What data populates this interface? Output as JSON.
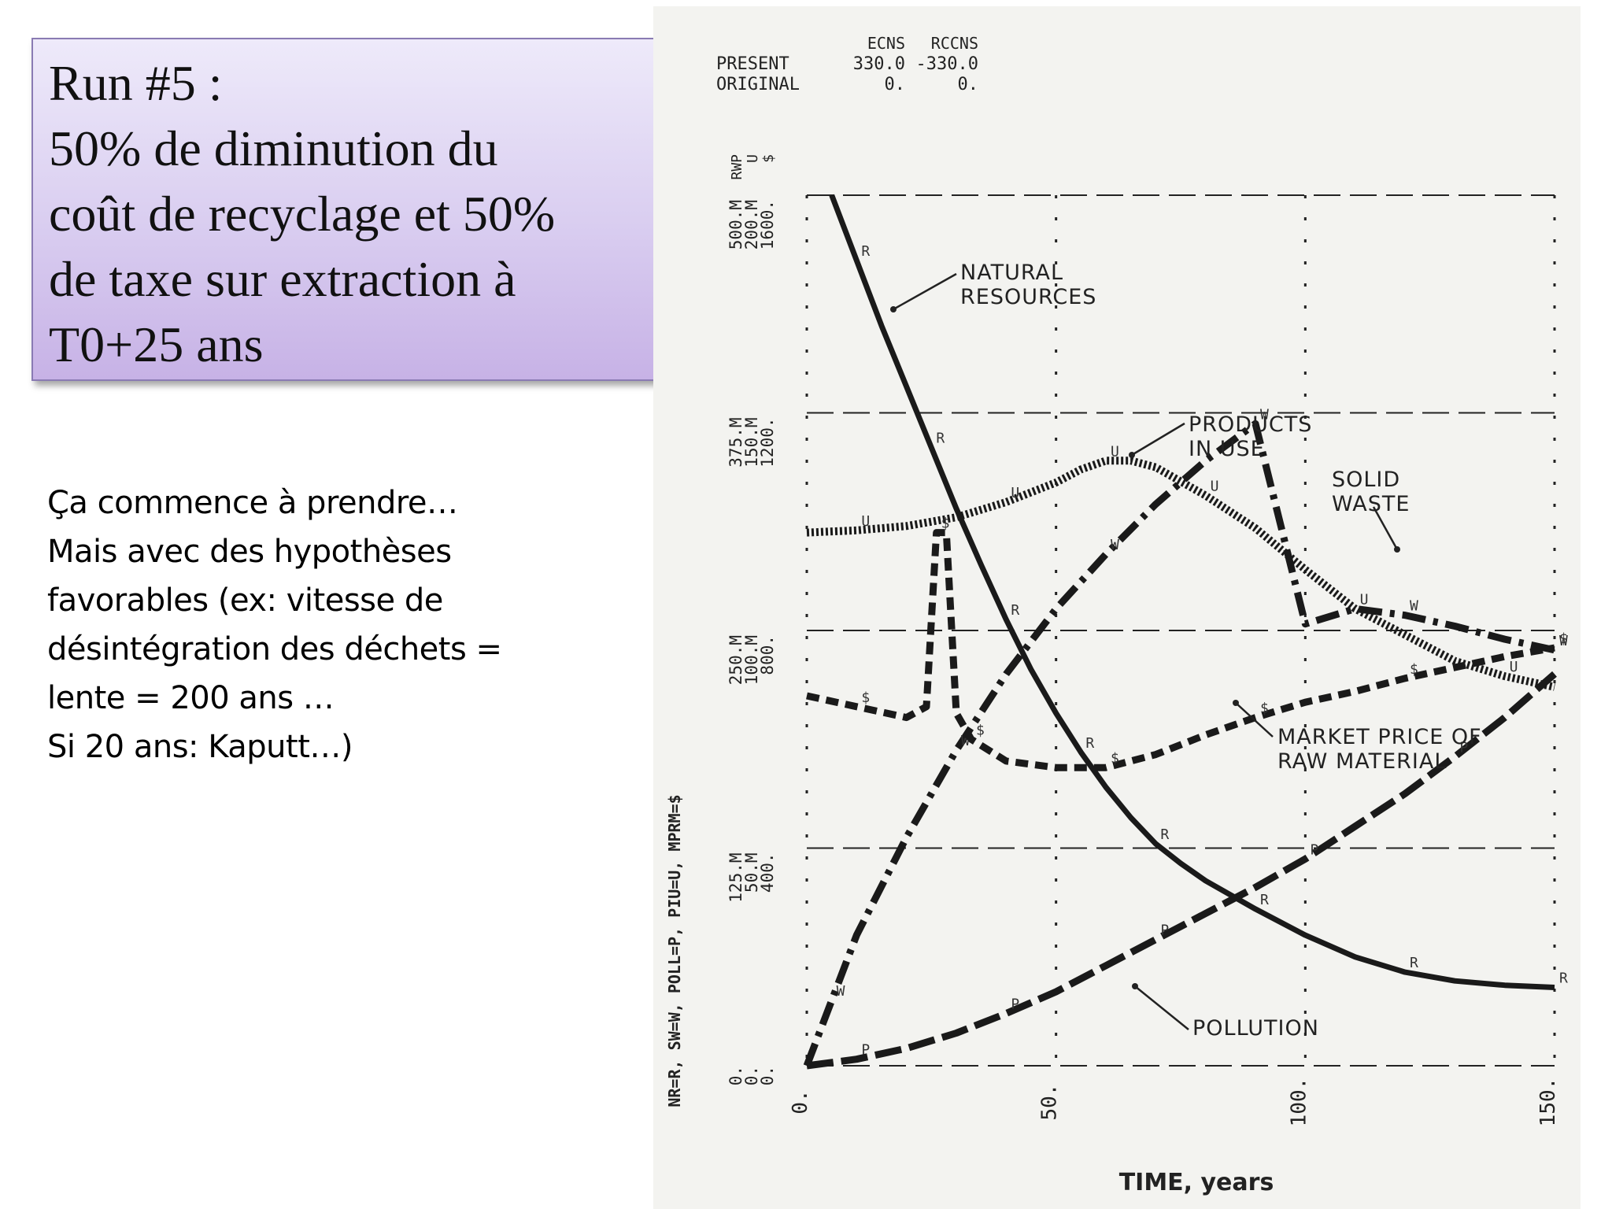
{
  "slide": {
    "title_lines": [
      "Run #5 :",
      "50% de diminution du",
      "coût de recyclage et 50%",
      "de taxe sur extraction à",
      "T0+25 ans"
    ],
    "body_lines": [
      "Ça commence à prendre…",
      "Mais avec des hypothèses",
      "favorables (ex: vitesse de",
      "désintégration des déchets =",
      "lente = 200 ans …",
      "Si 20 ans: Kaputt…)"
    ]
  },
  "chart_data": {
    "type": "line",
    "xlabel": "TIME, years",
    "x_ticks": [
      "0.",
      "50.",
      "100.",
      "150."
    ],
    "xlim": [
      0,
      150
    ],
    "ylim": [
      0,
      4
    ],
    "y_tick_columns": [
      [
        "0.",
        "125.M",
        "250.M",
        "375.M",
        "500.M"
      ],
      [
        "0.",
        "50.M",
        "100.M",
        "150.M",
        "200.M"
      ],
      [
        "0.",
        "400.",
        "800.",
        "1200.",
        "1600."
      ]
    ],
    "y_unit_labels": [
      "RWP",
      "U",
      "$"
    ],
    "y_axis_label": "NR=R, SW=W, POLL=P, PIU=U, MPRM=$",
    "param_table": {
      "row_labels": [
        "PRESENT",
        "ORIGINAL"
      ],
      "columns": [
        {
          "header": "ECNS",
          "values": [
            "330.0",
            "0."
          ]
        },
        {
          "header": "RCCNS",
          "values": [
            "-330.0",
            "0."
          ]
        }
      ]
    },
    "series": [
      {
        "name": "NATURAL RESOURCES",
        "symbol": "R",
        "style": "solid",
        "x": [
          5,
          10,
          15,
          20,
          25,
          30,
          35,
          40,
          45,
          50,
          55,
          60,
          65,
          70,
          75,
          80,
          90,
          100,
          110,
          120,
          130,
          140,
          150
        ],
        "y": [
          4.0,
          3.7,
          3.4,
          3.12,
          2.84,
          2.56,
          2.3,
          2.05,
          1.82,
          1.62,
          1.44,
          1.28,
          1.14,
          1.02,
          0.93,
          0.85,
          0.72,
          0.6,
          0.5,
          0.43,
          0.39,
          0.37,
          0.36
        ]
      },
      {
        "name": "PRODUCTS IN USE",
        "symbol": "U",
        "style": "dotted",
        "x": [
          0,
          10,
          20,
          30,
          40,
          50,
          55,
          60,
          65,
          70,
          80,
          90,
          100,
          110,
          120,
          130,
          140,
          150
        ],
        "y": [
          2.45,
          2.46,
          2.48,
          2.52,
          2.59,
          2.68,
          2.74,
          2.78,
          2.78,
          2.75,
          2.62,
          2.47,
          2.28,
          2.1,
          1.98,
          1.86,
          1.79,
          1.74
        ]
      },
      {
        "name": "SOLID WASTE",
        "symbol": "W",
        "style": "dash-dot",
        "x": [
          0,
          5,
          10,
          20,
          30,
          40,
          50,
          60,
          70,
          80,
          90,
          100,
          110,
          120,
          130,
          140,
          150
        ],
        "y": [
          0,
          0.3,
          0.6,
          1.05,
          1.45,
          1.8,
          2.1,
          2.35,
          2.58,
          2.78,
          2.95,
          2.03,
          2.1,
          2.07,
          2.02,
          1.96,
          1.91
        ]
      },
      {
        "name": "MARKET PRICE OF RAW MATERIAL",
        "symbol": "$",
        "style": "dashed",
        "x": [
          0,
          10,
          20,
          24,
          26,
          28,
          30,
          33,
          40,
          50,
          60,
          70,
          80,
          90,
          100,
          110,
          120,
          130,
          140,
          150
        ],
        "y": [
          1.7,
          1.65,
          1.6,
          1.65,
          2.45,
          2.45,
          1.62,
          1.5,
          1.4,
          1.37,
          1.37,
          1.43,
          1.52,
          1.6,
          1.67,
          1.72,
          1.78,
          1.83,
          1.88,
          1.92
        ]
      },
      {
        "name": "POLLUTION",
        "symbol": "P",
        "style": "long-dash",
        "x": [
          0,
          10,
          20,
          30,
          40,
          50,
          60,
          70,
          80,
          90,
          100,
          110,
          120,
          130,
          140,
          150
        ],
        "y": [
          0,
          0.03,
          0.08,
          0.15,
          0.24,
          0.34,
          0.46,
          0.58,
          0.7,
          0.82,
          0.95,
          1.1,
          1.25,
          1.42,
          1.6,
          1.8
        ]
      }
    ],
    "annotations": [
      "NATURAL RESOURCES",
      "PRODUCTS IN USE",
      "SOLID WASTE",
      "MARKET PRICE OF RAW MATERIAL",
      "POLLUTION"
    ]
  }
}
